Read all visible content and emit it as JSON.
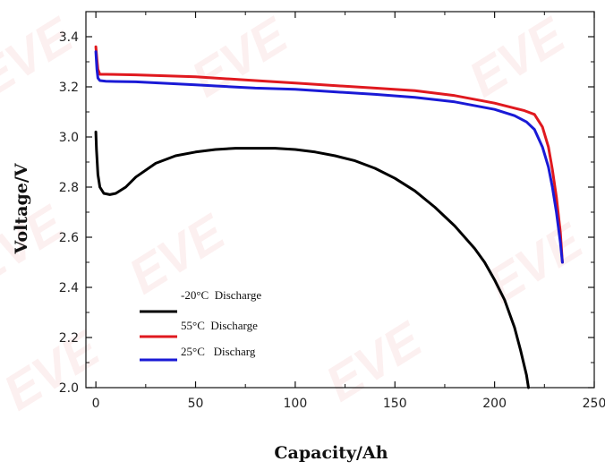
{
  "chart_data": {
    "type": "line",
    "title": "",
    "xlabel": "Capacity/Ah",
    "ylabel": "Voltage/V",
    "xlim": [
      -5,
      250
    ],
    "ylim": [
      2.0,
      3.5
    ],
    "x_ticks": [
      "0",
      "50",
      "100",
      "150",
      "200",
      "250"
    ],
    "y_ticks": [
      "2.0",
      "2.2",
      "2.4",
      "2.6",
      "2.8",
      "3.0",
      "3.2",
      "3.4"
    ],
    "grid": false,
    "legend_position": "lower-left",
    "watermark": "EVE",
    "series": [
      {
        "name": "-20°C  Discharge",
        "color": "#000000",
        "x": [
          0,
          0.3,
          1,
          2,
          4,
          7,
          10,
          15,
          20,
          30,
          40,
          50,
          60,
          70,
          80,
          90,
          100,
          110,
          120,
          130,
          140,
          150,
          160,
          170,
          180,
          190,
          195,
          200,
          205,
          210,
          213,
          216,
          217
        ],
        "y": [
          3.02,
          2.95,
          2.85,
          2.8,
          2.775,
          2.77,
          2.775,
          2.8,
          2.84,
          2.895,
          2.925,
          2.94,
          2.95,
          2.955,
          2.955,
          2.955,
          2.95,
          2.94,
          2.925,
          2.905,
          2.875,
          2.835,
          2.785,
          2.72,
          2.645,
          2.555,
          2.5,
          2.43,
          2.35,
          2.24,
          2.15,
          2.05,
          2.0
        ]
      },
      {
        "name": "55°C  Discharge",
        "color": "#e0191f",
        "x": [
          0,
          0.5,
          1,
          2,
          5,
          20,
          50,
          80,
          100,
          120,
          140,
          160,
          180,
          200,
          210,
          215,
          220,
          224,
          227,
          229,
          231,
          233,
          234
        ],
        "y": [
          3.36,
          3.31,
          3.27,
          3.25,
          3.25,
          3.248,
          3.24,
          3.225,
          3.215,
          3.205,
          3.195,
          3.185,
          3.165,
          3.135,
          3.115,
          3.105,
          3.09,
          3.04,
          2.96,
          2.87,
          2.76,
          2.62,
          2.5
        ]
      },
      {
        "name": "25°C   Discharg",
        "color": "#1a1ad6",
        "x": [
          0,
          0.5,
          1,
          2,
          5,
          20,
          50,
          80,
          100,
          120,
          140,
          160,
          180,
          200,
          210,
          216,
          220,
          224,
          227,
          229,
          231,
          233,
          234
        ],
        "y": [
          3.34,
          3.27,
          3.235,
          3.225,
          3.222,
          3.22,
          3.208,
          3.195,
          3.19,
          3.18,
          3.17,
          3.158,
          3.14,
          3.11,
          3.085,
          3.06,
          3.03,
          2.96,
          2.88,
          2.8,
          2.7,
          2.58,
          2.5
        ]
      }
    ]
  }
}
